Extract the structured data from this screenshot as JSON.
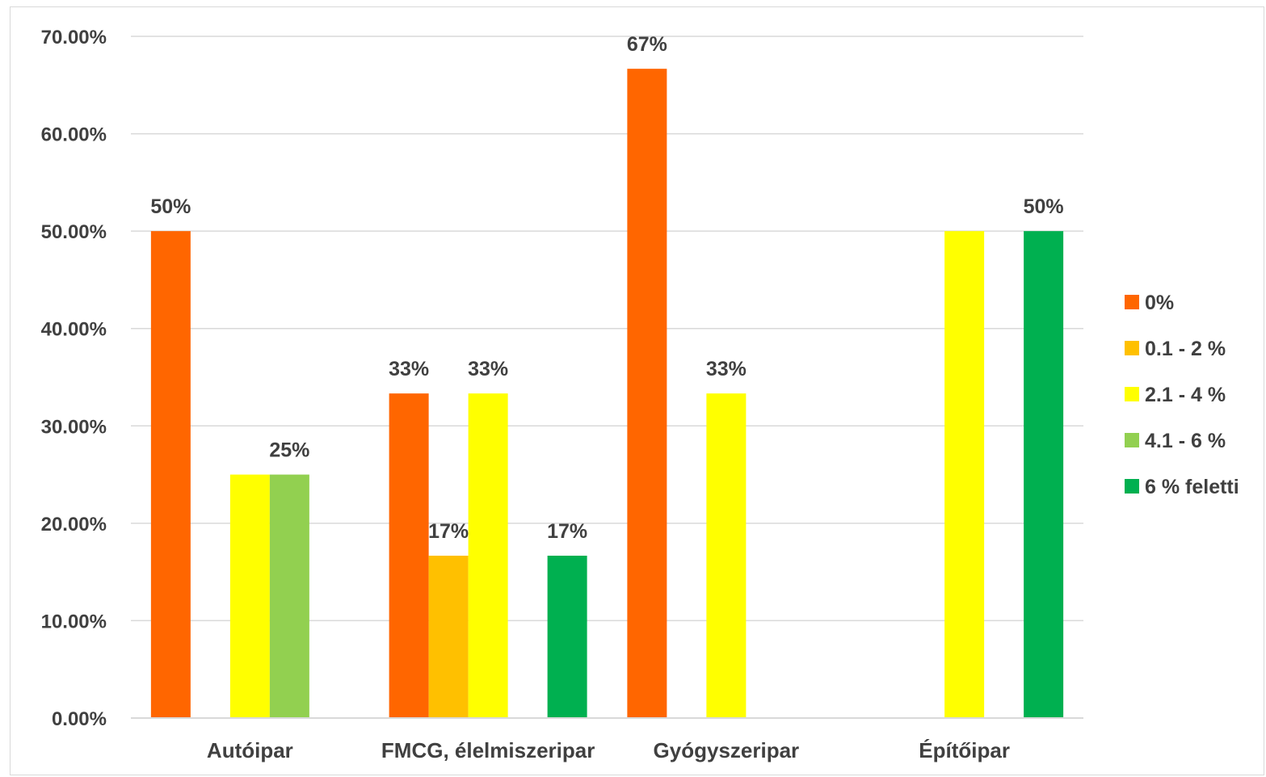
{
  "chart_data": {
    "type": "bar",
    "title": "",
    "xlabel": "",
    "ylabel": "",
    "categories": [
      "Autóipar",
      "FMCG, élelmiszeripar",
      "Gyógyszeripar",
      "Építőipar"
    ],
    "ylim": [
      0,
      0.7
    ],
    "yticks": [
      0,
      0.1,
      0.2,
      0.3,
      0.4,
      0.5,
      0.6,
      0.7
    ],
    "ytick_labels": [
      "0.00%",
      "10.00%",
      "20.00%",
      "30.00%",
      "40.00%",
      "50.00%",
      "60.00%",
      "70.00%"
    ],
    "grid": true,
    "legend_position": "right",
    "series": [
      {
        "name": "0%",
        "color": "#FF6600",
        "values": [
          0.5,
          0.3333,
          0.6667,
          0
        ],
        "labels": [
          "50%",
          "33%",
          "67%",
          ""
        ]
      },
      {
        "name": "0.1 - 2 %",
        "color": "#FFC000",
        "values": [
          0,
          0.1667,
          0,
          0
        ],
        "labels": [
          "",
          "17%",
          "",
          ""
        ]
      },
      {
        "name": "2.1 - 4 %",
        "color": "#FFFF00",
        "values": [
          0.25,
          0.3333,
          0.3333,
          0.5
        ],
        "labels": [
          "",
          "33%",
          "33%",
          ""
        ]
      },
      {
        "name": "4.1 - 6 %",
        "color": "#92D050",
        "values": [
          0.25,
          0,
          0,
          0
        ],
        "labels": [
          "25%",
          "",
          "",
          ""
        ]
      },
      {
        "name": "6 % feletti",
        "color": "#00B050",
        "values": [
          0,
          0.1667,
          0,
          0.5
        ],
        "labels": [
          "",
          "17%",
          "",
          "50%"
        ]
      }
    ]
  }
}
